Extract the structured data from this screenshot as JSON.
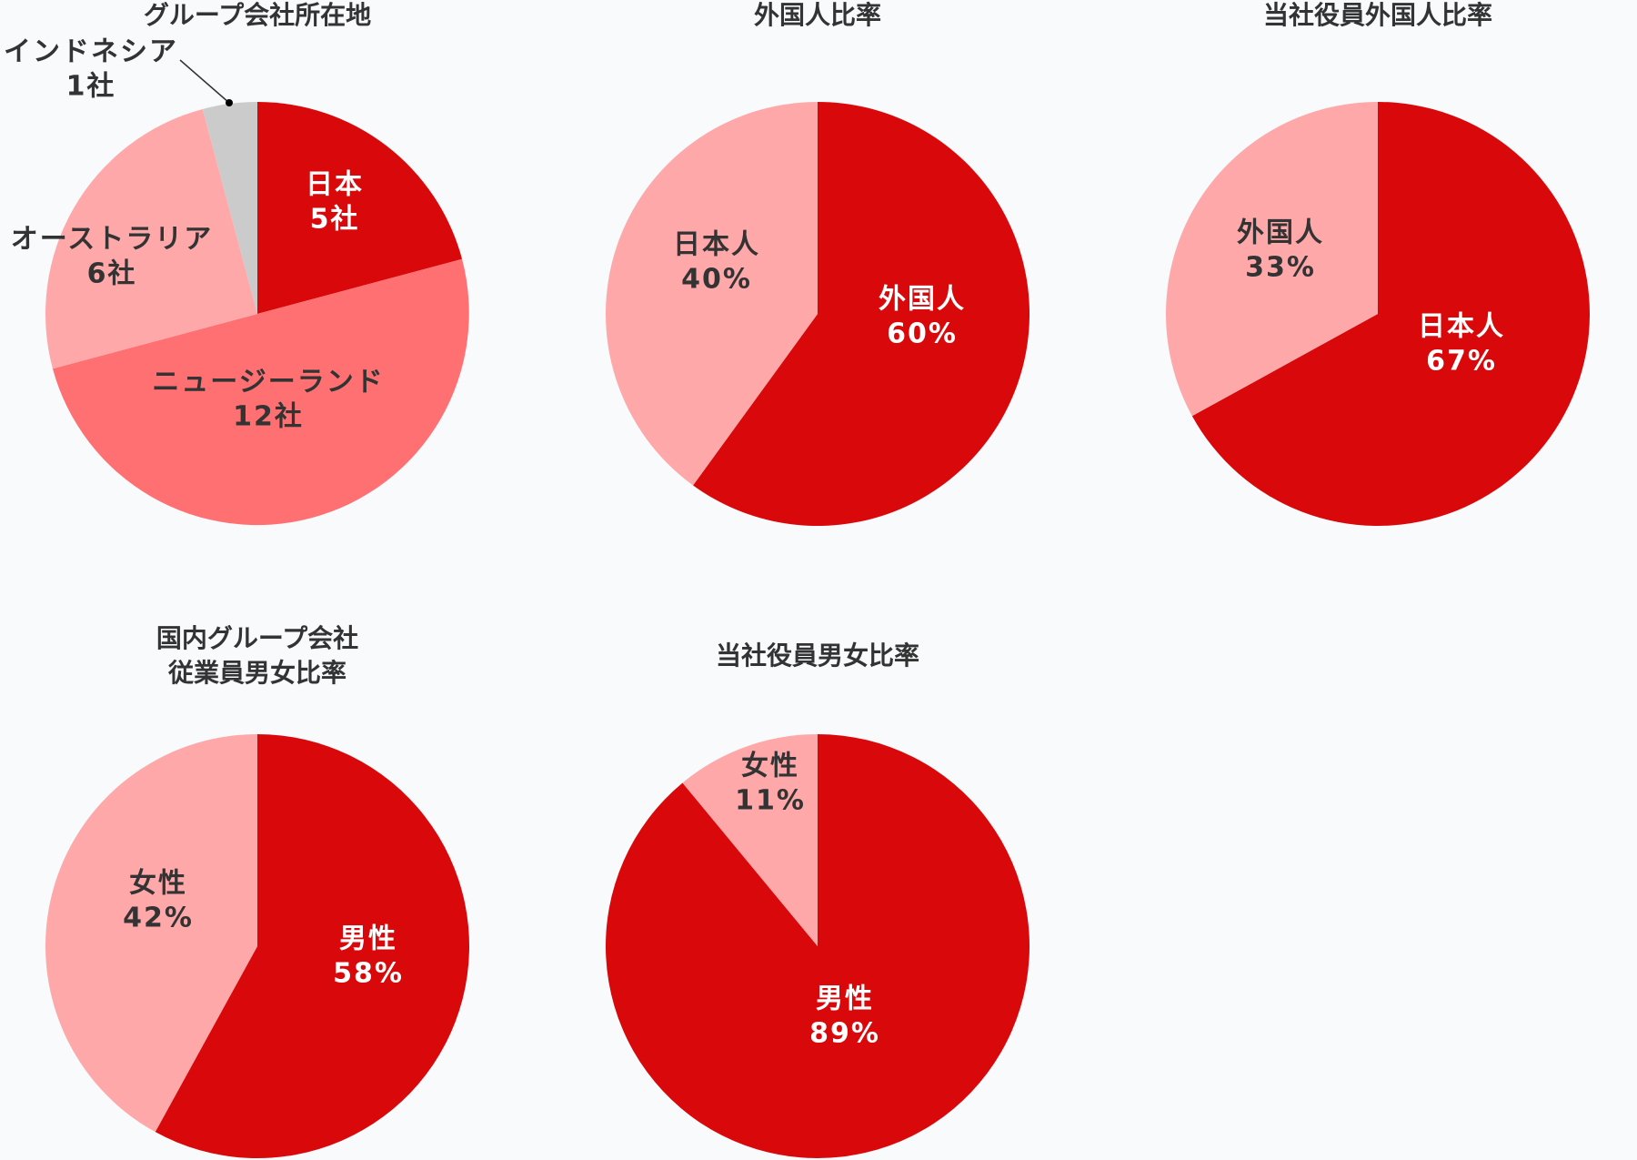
{
  "colors": {
    "dark_red": "#d9080b",
    "mid_red": "#ff7073",
    "light_pink": "#ffa8aa",
    "gray": "#cbcbcb",
    "text_dark": "#333333",
    "text_white": "#ffffff",
    "background": "#f9fafc"
  },
  "chart_data": [
    {
      "id": "group-locations",
      "type": "pie",
      "title": [
        "グループ会社所在地"
      ],
      "unit": "社",
      "slices": [
        {
          "label": "日本",
          "value_text": "5社",
          "value": 5,
          "color": "#d9080b",
          "text_color": "#ffffff"
        },
        {
          "label": "ニュージーランド",
          "value_text": "12社",
          "value": 12,
          "color": "#ff7073",
          "text_color": "#333333"
        },
        {
          "label": "オーストラリア",
          "value_text": "6社",
          "value": 6,
          "color": "#ffa8aa",
          "text_color": "#333333"
        },
        {
          "label": "インドネシア",
          "value_text": "1社",
          "value": 1,
          "color": "#cbcbcb",
          "text_color": "#333333"
        }
      ]
    },
    {
      "id": "foreigner-ratio",
      "type": "pie",
      "title": [
        "外国人比率"
      ],
      "unit": "%",
      "slices": [
        {
          "label": "外国人",
          "value_text": "60%",
          "value": 60,
          "color": "#d9080b",
          "text_color": "#ffffff"
        },
        {
          "label": "日本人",
          "value_text": "40%",
          "value": 40,
          "color": "#ffa8aa",
          "text_color": "#333333"
        }
      ]
    },
    {
      "id": "officer-foreigner-ratio",
      "type": "pie",
      "title": [
        "当社役員外国人比率"
      ],
      "unit": "%",
      "slices": [
        {
          "label": "日本人",
          "value_text": "67%",
          "value": 67,
          "color": "#d9080b",
          "text_color": "#ffffff"
        },
        {
          "label": "外国人",
          "value_text": "33%",
          "value": 33,
          "color": "#ffa8aa",
          "text_color": "#333333"
        }
      ]
    },
    {
      "id": "domestic-gender-ratio",
      "type": "pie",
      "title": [
        "国内グループ会社",
        "従業員男女比率"
      ],
      "unit": "%",
      "slices": [
        {
          "label": "男性",
          "value_text": "58%",
          "value": 58,
          "color": "#d9080b",
          "text_color": "#ffffff"
        },
        {
          "label": "女性",
          "value_text": "42%",
          "value": 42,
          "color": "#ffa8aa",
          "text_color": "#333333"
        }
      ]
    },
    {
      "id": "officer-gender-ratio",
      "type": "pie",
      "title": [
        "当社役員男女比率"
      ],
      "unit": "%",
      "slices": [
        {
          "label": "男性",
          "value_text": "89%",
          "value": 89,
          "color": "#d9080b",
          "text_color": "#ffffff"
        },
        {
          "label": "女性",
          "value_text": "11%",
          "value": 11,
          "color": "#ffa8aa",
          "text_color": "#333333"
        }
      ]
    }
  ]
}
